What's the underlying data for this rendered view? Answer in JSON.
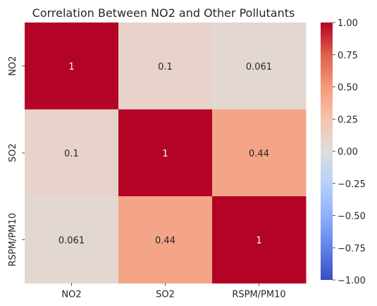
{
  "chart_data": {
    "type": "heatmap",
    "title": "Correlation Between NO2 and Other Pollutants",
    "xlabel": "",
    "ylabel": "",
    "x_categories": [
      "NO2",
      "SO2",
      "RSPM/PM10"
    ],
    "y_categories": [
      "NO2",
      "SO2",
      "RSPM/PM10"
    ],
    "values": [
      [
        1,
        0.1,
        0.061
      ],
      [
        0.1,
        1,
        0.44
      ],
      [
        0.061,
        0.44,
        1
      ]
    ],
    "annotations": [
      [
        "1",
        "0.1",
        "0.061"
      ],
      [
        "0.1",
        "1",
        "0.44"
      ],
      [
        "0.061",
        "0.44",
        "1"
      ]
    ],
    "colormap": "coolwarm",
    "vmin": -1,
    "vmax": 1,
    "colorbar_ticks": [
      1.0,
      0.75,
      0.5,
      0.25,
      0.0,
      -0.25,
      -0.5,
      -0.75,
      -1.0
    ],
    "colorbar_tick_labels": [
      "1.00",
      "0.75",
      "0.50",
      "0.25",
      "0.00",
      "−0.25",
      "−0.50",
      "−0.75",
      "−1.00"
    ],
    "grid": false,
    "legend": "colorbar-right",
    "colors": {
      "low": "#3b4cc0",
      "mid": "#dddddd",
      "high": "#b40426"
    }
  }
}
